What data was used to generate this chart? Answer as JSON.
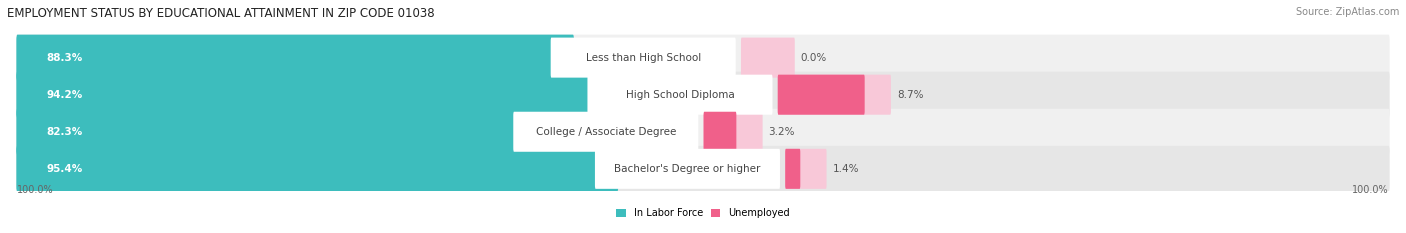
{
  "title": "EMPLOYMENT STATUS BY EDUCATIONAL ATTAINMENT IN ZIP CODE 01038",
  "source": "Source: ZipAtlas.com",
  "categories": [
    "Less than High School",
    "High School Diploma",
    "College / Associate Degree",
    "Bachelor's Degree or higher"
  ],
  "in_labor_force": [
    88.3,
    94.2,
    82.3,
    95.4
  ],
  "unemployed": [
    0.0,
    8.7,
    3.2,
    1.4
  ],
  "color_labor": "#3DBDBD",
  "color_unemployed": "#F0608A",
  "color_labor_light": "#C8E8E8",
  "color_unemployed_light": "#F8C8D8",
  "row_bg_even": "#F0F0F0",
  "row_bg_odd": "#E6E6E6",
  "x_left_label": "100.0%",
  "x_right_label": "100.0%",
  "title_fontsize": 8.5,
  "label_fontsize": 7.5,
  "cat_fontsize": 7.5,
  "tick_fontsize": 7,
  "source_fontsize": 7
}
